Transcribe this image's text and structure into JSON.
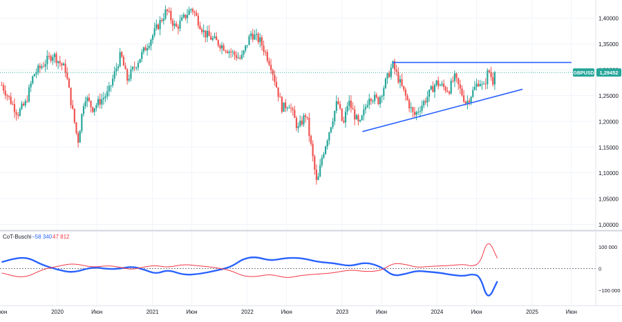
{
  "colors": {
    "bull": "#26a69a",
    "bear": "#ef5350",
    "trendline": "#2962ff",
    "cot_long": "#2962ff",
    "cot_short": "#f23645",
    "axis_text": "#131722",
    "grid": "#f0f3fa",
    "price_label_bg": "#26a69a"
  },
  "chart_data": [
    {
      "type": "candlestick",
      "symbol": "GBPUSD",
      "last_price_label": "1,29452",
      "last_price": 1.29452,
      "ylim": [
        0.99,
        1.435
      ],
      "y_ticks": [
        "1,40000",
        "1,35000",
        "1,30000",
        "1,25000",
        "1,20000",
        "1,15000",
        "1,10000",
        "1,05000",
        "1,00000"
      ],
      "y_tick_values": [
        1.4,
        1.35,
        1.3,
        1.25,
        1.2,
        1.15,
        1.1,
        1.05,
        1.0
      ],
      "x_ticks": [
        "2020",
        "Июн",
        "2021",
        "Июн",
        "2022",
        "Июн",
        "2023",
        "Июн",
        "2024",
        "Июн",
        "2025",
        "Июн"
      ],
      "x_tick_dates": [
        "2020-01-01",
        "2020-06-01",
        "2021-01-01",
        "2021-06-01",
        "2022-01-01",
        "2022-06-01",
        "2023-01-01",
        "2023-06-01",
        "2024-01-01",
        "2024-06-01",
        "2025-01-01",
        "2025-06-01"
      ],
      "first_axis_label": "юн",
      "price_anchors": [
        [
          "2019-06-01",
          1.27
        ],
        [
          "2019-08-01",
          1.215
        ],
        [
          "2019-09-01",
          1.235
        ],
        [
          "2019-10-01",
          1.29
        ],
        [
          "2019-12-15",
          1.33
        ],
        [
          "2020-02-01",
          1.3
        ],
        [
          "2020-03-20",
          1.16
        ],
        [
          "2020-04-15",
          1.25
        ],
        [
          "2020-05-15",
          1.225
        ],
        [
          "2020-07-15",
          1.255
        ],
        [
          "2020-09-01",
          1.33
        ],
        [
          "2020-09-25",
          1.28
        ],
        [
          "2020-12-31",
          1.365
        ],
        [
          "2021-02-24",
          1.415
        ],
        [
          "2021-04-01",
          1.38
        ],
        [
          "2021-06-01",
          1.42
        ],
        [
          "2021-07-20",
          1.37
        ],
        [
          "2021-09-30",
          1.345
        ],
        [
          "2021-12-08",
          1.32
        ],
        [
          "2022-01-15",
          1.37
        ],
        [
          "2022-02-20",
          1.355
        ],
        [
          "2022-04-01",
          1.31
        ],
        [
          "2022-05-15",
          1.225
        ],
        [
          "2022-06-10",
          1.235
        ],
        [
          "2022-07-15",
          1.185
        ],
        [
          "2022-08-15",
          1.215
        ],
        [
          "2022-09-26",
          1.075
        ],
        [
          "2022-10-15",
          1.13
        ],
        [
          "2022-12-14",
          1.24
        ],
        [
          "2023-01-05",
          1.19
        ],
        [
          "2023-01-24",
          1.24
        ],
        [
          "2023-03-08",
          1.19
        ],
        [
          "2023-04-15",
          1.25
        ],
        [
          "2023-05-20",
          1.24
        ],
        [
          "2023-07-14",
          1.31
        ],
        [
          "2023-08-15",
          1.27
        ],
        [
          "2023-10-04",
          1.21
        ],
        [
          "2023-11-15",
          1.24
        ],
        [
          "2023-12-28",
          1.275
        ],
        [
          "2024-02-15",
          1.26
        ],
        [
          "2024-03-08",
          1.285
        ],
        [
          "2024-04-22",
          1.235
        ],
        [
          "2024-06-12",
          1.28
        ],
        [
          "2024-06-27",
          1.262
        ],
        [
          "2024-07-17",
          1.3
        ],
        [
          "2024-08-05",
          1.275
        ],
        [
          "2024-08-16",
          1.294
        ]
      ],
      "lines": [
        {
          "name": "resistance",
          "x": [
            "2023-07-14",
            "2025-06-01"
          ],
          "y": [
            1.314,
            1.314
          ]
        },
        {
          "name": "ascending-support",
          "x": [
            "2023-03-20",
            "2024-11-25"
          ],
          "y": [
            1.18,
            1.262
          ]
        }
      ],
      "price_line": 1.29452
    },
    {
      "type": "line",
      "title": "CoT-Buschi",
      "legend_values": [
        "−58 340",
        "47 812"
      ],
      "ylim": [
        -170000,
        170000
      ],
      "y_ticks": [
        "100 000",
        "0",
        "−100 000"
      ],
      "y_tick_values": [
        100000,
        0,
        -100000
      ],
      "zero_line": 0,
      "series": [
        {
          "color": "#2962ff",
          "x": [
            "2019-06-01",
            "2019-08-01",
            "2019-09-15",
            "2019-11-01",
            "2020-01-01",
            "2020-03-01",
            "2020-05-15",
            "2020-07-15",
            "2020-09-01",
            "2020-10-15",
            "2020-12-01",
            "2021-01-15",
            "2021-03-01",
            "2021-05-01",
            "2021-07-01",
            "2021-09-01",
            "2021-11-01",
            "2021-12-15",
            "2022-02-01",
            "2022-04-01",
            "2022-06-01",
            "2022-08-01",
            "2022-10-01",
            "2022-12-01",
            "2023-02-01",
            "2023-04-01",
            "2023-06-01",
            "2023-07-15",
            "2023-09-01",
            "2023-10-15",
            "2023-12-01",
            "2024-01-15",
            "2024-03-01",
            "2024-04-15",
            "2024-05-15",
            "2024-06-15",
            "2024-07-15",
            "2024-08-20"
          ],
          "values": [
            30000,
            50000,
            48000,
            18000,
            -5000,
            -20000,
            8000,
            -3000,
            0,
            10000,
            -5000,
            -25000,
            -5000,
            -30000,
            -25000,
            -10000,
            8000,
            45000,
            55000,
            35000,
            50000,
            48000,
            30000,
            25000,
            10000,
            30000,
            8000,
            -35000,
            -25000,
            -10000,
            -15000,
            -20000,
            -30000,
            -35000,
            -25000,
            -35000,
            -150000,
            -58340
          ]
        },
        {
          "color": "#f23645",
          "x": [
            "2019-06-01",
            "2019-08-01",
            "2019-09-15",
            "2019-11-01",
            "2020-01-01",
            "2020-03-01",
            "2020-05-15",
            "2020-07-15",
            "2020-09-01",
            "2020-10-15",
            "2020-12-01",
            "2021-01-15",
            "2021-03-01",
            "2021-05-01",
            "2021-07-01",
            "2021-09-01",
            "2021-11-01",
            "2021-12-15",
            "2022-02-01",
            "2022-04-01",
            "2022-06-01",
            "2022-08-01",
            "2022-10-01",
            "2022-12-01",
            "2023-02-01",
            "2023-04-01",
            "2023-06-01",
            "2023-07-15",
            "2023-09-01",
            "2023-10-15",
            "2023-12-01",
            "2024-01-15",
            "2024-03-01",
            "2024-04-15",
            "2024-05-15",
            "2024-06-15",
            "2024-07-15",
            "2024-08-20"
          ],
          "values": [
            -20000,
            -40000,
            -35000,
            -5000,
            10000,
            25000,
            5000,
            15000,
            5000,
            -5000,
            8000,
            15000,
            5000,
            20000,
            12000,
            5000,
            -10000,
            -35000,
            -38000,
            -25000,
            -45000,
            -30000,
            -25000,
            -20000,
            -5000,
            -15000,
            -10000,
            25000,
            20000,
            5000,
            10000,
            12000,
            15000,
            20000,
            10000,
            25000,
            140000,
            47812
          ]
        }
      ]
    }
  ]
}
